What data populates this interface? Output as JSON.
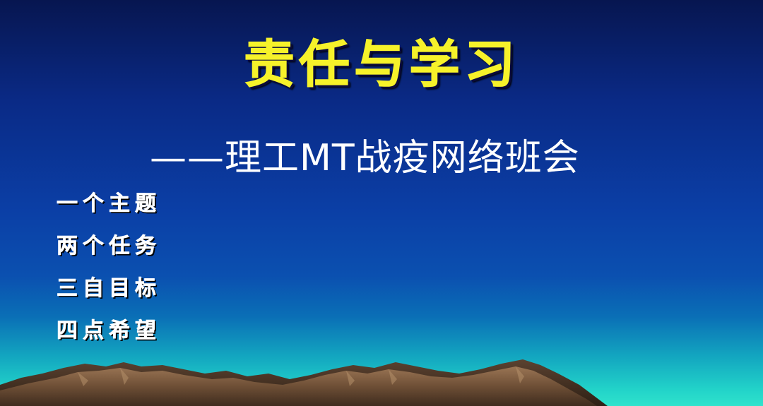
{
  "slide": {
    "title": "责任与学习",
    "subtitle": "——理工MT战疫网络班会",
    "points": [
      "一个主题",
      "两个任务",
      "三自目标",
      "四点希望"
    ]
  },
  "colors": {
    "title": "#f6f22a",
    "text": "#ffffff",
    "bg_top": "#071650",
    "bg_mid": "#0b3fa6",
    "bg_horizon": "#2fe3cc",
    "mountain": "#7a5a3e"
  }
}
